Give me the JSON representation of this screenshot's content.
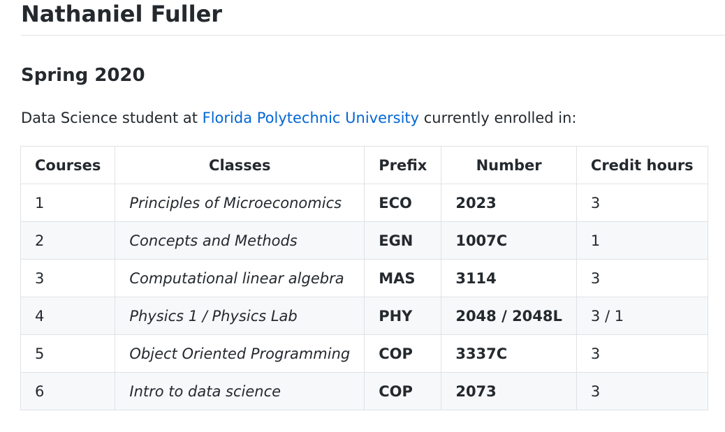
{
  "header": {
    "title": "Nathaniel Fuller"
  },
  "section": {
    "title": "Spring 2020"
  },
  "intro": {
    "before": "Data Science student at ",
    "link_text": "Florida Polytechnic University",
    "after": " currently enrolled in:"
  },
  "table": {
    "headers": [
      "Courses",
      "Classes",
      "Prefix",
      "Number",
      "Credit hours"
    ],
    "rows": [
      {
        "course": "1",
        "class": "Principles of Microeconomics",
        "prefix": "ECO",
        "number": "2023",
        "credit": "3"
      },
      {
        "course": "2",
        "class": "Concepts and Methods",
        "prefix": "EGN",
        "number": "1007C",
        "credit": "1"
      },
      {
        "course": "3",
        "class": "Computational linear algebra",
        "prefix": "MAS",
        "number": "3114",
        "credit": "3"
      },
      {
        "course": "4",
        "class": "Physics 1 / Physics Lab",
        "prefix": "PHY",
        "number": "2048 / 2048L",
        "credit": "3 / 1"
      },
      {
        "course": "5",
        "class": "Object Oriented Programming",
        "prefix": "COP",
        "number": "3337C",
        "credit": "3"
      },
      {
        "course": "6",
        "class": "Intro to data science",
        "prefix": "COP",
        "number": "2073",
        "credit": "3"
      }
    ]
  },
  "colors": {
    "text": "#24292e",
    "link": "#0366d6",
    "border": "#dfe2e5",
    "stripe": "#f6f8fa"
  }
}
